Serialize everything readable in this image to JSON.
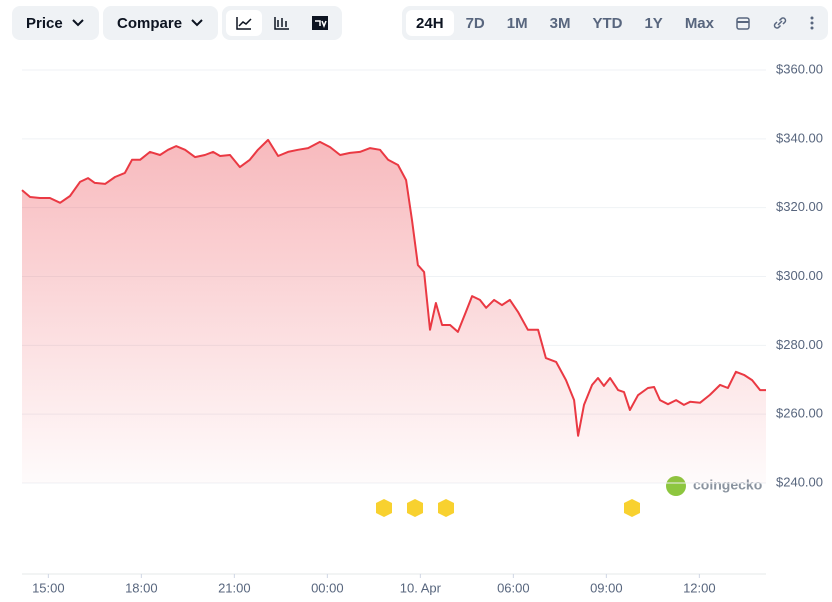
{
  "toolbar": {
    "price": "Price",
    "compare": "Compare",
    "ranges": [
      "24H",
      "7D",
      "1M",
      "3M",
      "YTD",
      "1Y",
      "Max"
    ],
    "selected": "24H"
  },
  "watermark": "coingecko",
  "chart_data": {
    "type": "area",
    "color": "#ea3943",
    "x": [
      14.15,
      14.41,
      14.73,
      15.05,
      15.38,
      15.7,
      16.02,
      16.28,
      16.5,
      16.83,
      17.15,
      17.47,
      17.7,
      17.96,
      18.28,
      18.6,
      18.86,
      19.12,
      19.41,
      19.73,
      20.05,
      20.31,
      20.54,
      20.86,
      21.18,
      21.5,
      21.76,
      22.09,
      22.41,
      22.73,
      23.05,
      23.38,
      23.76,
      24.09,
      24.41,
      24.73,
      25.05,
      25.38,
      25.7,
      25.96,
      26.28,
      26.54,
      26.73,
      26.92,
      27.12,
      27.31,
      27.5,
      27.7,
      27.96,
      28.21,
      28.47,
      28.67,
      28.92,
      29.12,
      29.38,
      29.63,
      29.89,
      30.15,
      30.47,
      30.8,
      31.05,
      31.38,
      31.7,
      31.96,
      32.09,
      32.28,
      32.54,
      32.73,
      32.92,
      33.12,
      33.38,
      33.57,
      33.76,
      34.02,
      34.34,
      34.54,
      34.73,
      34.99,
      35.25,
      35.5,
      35.7,
      36.02,
      36.34,
      36.67,
      36.92,
      37.18,
      37.44,
      37.7,
      37.96,
      38.15
    ],
    "values": [
      325.1,
      323.1,
      322.8,
      322.8,
      321.4,
      323.4,
      327.5,
      328.6,
      327.2,
      326.9,
      328.9,
      330.1,
      333.9,
      333.9,
      336.2,
      335.3,
      336.8,
      337.9,
      336.8,
      334.7,
      335.3,
      336.2,
      335.0,
      335.3,
      331.8,
      333.9,
      336.8,
      339.7,
      335.0,
      336.2,
      336.8,
      337.3,
      339.1,
      337.6,
      335.3,
      335.9,
      336.2,
      337.3,
      336.8,
      333.9,
      332.4,
      328.0,
      316.4,
      303.3,
      301.3,
      284.5,
      292.3,
      285.9,
      285.9,
      283.9,
      289.7,
      294.3,
      293.2,
      290.9,
      293.2,
      291.7,
      293.2,
      289.7,
      284.5,
      284.5,
      276.3,
      275.2,
      269.9,
      264.1,
      253.7,
      262.7,
      268.5,
      270.5,
      268.2,
      270.5,
      267.0,
      266.4,
      261.2,
      265.5,
      267.6,
      267.9,
      264.1,
      262.9,
      264.1,
      262.7,
      263.6,
      263.3,
      265.6,
      268.5,
      267.6,
      272.3,
      271.4,
      269.9,
      267.0,
      267.0
    ],
    "xlim": [
      14.15,
      38.15
    ],
    "xticks": [
      {
        "value": 15,
        "label": "15:00"
      },
      {
        "value": 18,
        "label": "18:00"
      },
      {
        "value": 21,
        "label": "21:00"
      },
      {
        "value": 24,
        "label": "00:00"
      },
      {
        "value": 27,
        "label": "10. Apr"
      },
      {
        "value": 30,
        "label": "06:00"
      },
      {
        "value": 33,
        "label": "09:00"
      },
      {
        "value": 36,
        "label": "12:00"
      }
    ],
    "ylim": [
      240,
      360
    ],
    "yticks": [
      {
        "value": 240,
        "label": "$240.00"
      },
      {
        "value": 260,
        "label": "$260.00"
      },
      {
        "value": 280,
        "label": "$280.00"
      },
      {
        "value": 300,
        "label": "$300.00"
      },
      {
        "value": 320,
        "label": "$320.00"
      },
      {
        "value": 340,
        "label": "$340.00"
      },
      {
        "value": 360,
        "label": "$360.00"
      }
    ],
    "grid": true
  }
}
